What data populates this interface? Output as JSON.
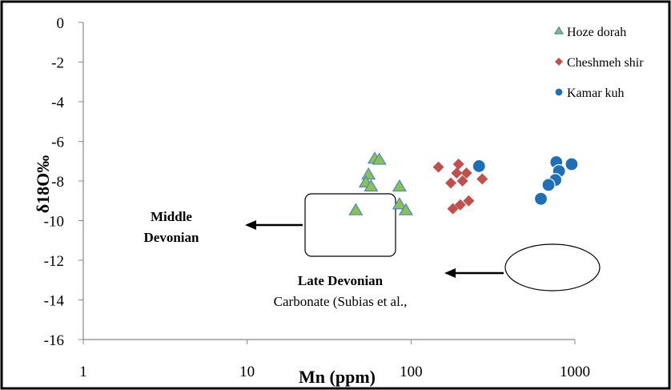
{
  "chart_data": {
    "type": "scatter",
    "xscale": "log",
    "xlim": [
      1,
      1000
    ],
    "ylim": [
      -16,
      0
    ],
    "grid": false,
    "legend_position": "top-right",
    "xlabel": "Mn (ppm)",
    "ylabel": "δ18O‰",
    "x_ticks": [
      "1",
      "10",
      "100",
      "1000"
    ],
    "y_ticks": [
      "0",
      "-2",
      "-4",
      "-6",
      "-8",
      "-10",
      "-12",
      "-14",
      "-16"
    ],
    "series": [
      {
        "name": "Hoze dorah",
        "marker": "triangle",
        "color": "#8cc152",
        "stroke": "#4a86c8",
        "points": [
          [
            60,
            -6.9
          ],
          [
            64,
            -6.95
          ],
          [
            55,
            -7.7
          ],
          [
            53,
            -8.1
          ],
          [
            57,
            -8.3
          ],
          [
            85,
            -8.3
          ],
          [
            85,
            -9.2
          ],
          [
            93,
            -9.5
          ],
          [
            46,
            -9.5
          ]
        ]
      },
      {
        "name": "Cheshmeh shir",
        "marker": "diamond",
        "color": "#c0504d",
        "points": [
          [
            147,
            -7.3
          ],
          [
            195,
            -7.15
          ],
          [
            190,
            -7.6
          ],
          [
            218,
            -7.6
          ],
          [
            175,
            -8.1
          ],
          [
            206,
            -8.0
          ],
          [
            272,
            -7.9
          ],
          [
            200,
            -9.2
          ],
          [
            225,
            -9.0
          ],
          [
            180,
            -9.4
          ]
        ]
      },
      {
        "name": "Kamar kuh",
        "marker": "circle",
        "color": "#1f6fb5",
        "points": [
          [
            260,
            -7.25
          ],
          [
            770,
            -7.05
          ],
          [
            955,
            -7.15
          ],
          [
            800,
            -7.5
          ],
          [
            760,
            -7.95
          ],
          [
            690,
            -8.2
          ],
          [
            620,
            -8.9
          ]
        ]
      }
    ],
    "annotations": {
      "middle_devonian_line1": "Middle",
      "middle_devonian_line2": "Devonian",
      "late_devonian_line1": "Late Devonian",
      "late_devonian_line2": "Carbonate (Subias et al.,"
    }
  }
}
